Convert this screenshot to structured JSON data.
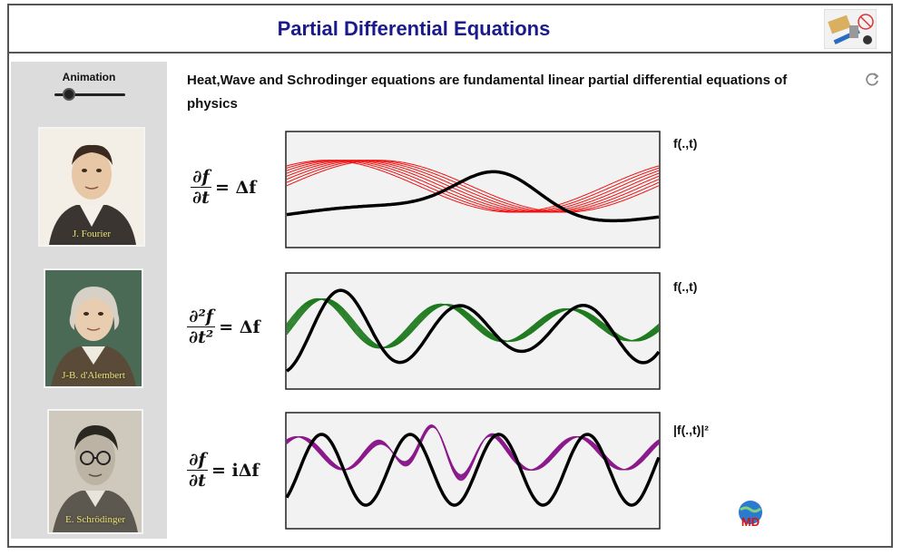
{
  "header": {
    "title": "Partial Differential Equations",
    "logo_icon": "engineer-tools-icon"
  },
  "sidebar": {
    "animation_label": "Animation",
    "animation_slider": {
      "value": 0.2
    },
    "portraits": [
      {
        "caption": "J. Fourier"
      },
      {
        "caption": "J-B. d'Alembert"
      },
      {
        "caption": "E. Schrödinger"
      }
    ]
  },
  "main": {
    "description": "Heat,Wave and Schrodinger equations are fundamental linear partial differential equations of physics",
    "refresh_icon": "refresh-icon",
    "equations": [
      {
        "num": "∂f",
        "den": "∂t",
        "rhs": "= Δf"
      },
      {
        "num": "∂²f",
        "den": "∂t²",
        "rhs": "= Δf"
      },
      {
        "num": "∂f",
        "den": "∂t",
        "rhs": "= iΔf"
      }
    ],
    "plots": [
      {
        "label": "f(.,t)",
        "color": "#ee1111"
      },
      {
        "label": "f(.,t)",
        "color": "#1e7a1e"
      },
      {
        "label": "|f(.,t)|²",
        "color": "#8b1a8b"
      }
    ],
    "badge_icon": "md-globe-icon"
  }
}
